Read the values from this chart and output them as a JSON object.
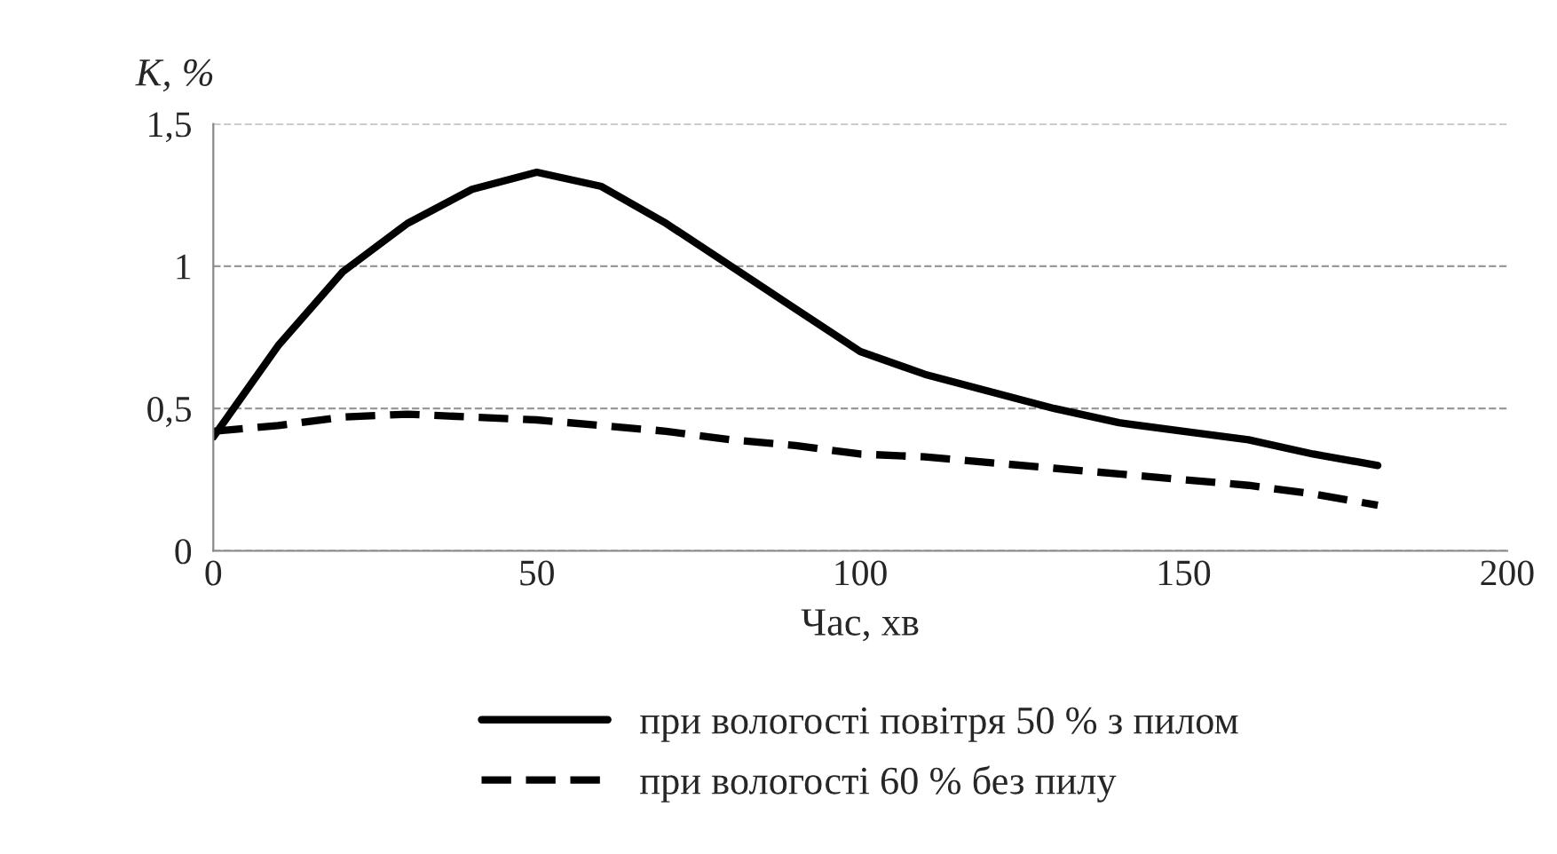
{
  "chart_data": {
    "type": "line",
    "ylabel": "K, %",
    "xlabel": "Час, хв",
    "x": [
      0,
      10,
      20,
      30,
      40,
      50,
      60,
      70,
      80,
      90,
      100,
      110,
      120,
      130,
      140,
      150,
      160,
      170,
      180
    ],
    "series": [
      {
        "name": "при вологості повітря 50 % з пилом",
        "color": "#000000",
        "line_style": "solid",
        "values": [
          0.4,
          0.72,
          0.98,
          1.15,
          1.27,
          1.33,
          1.28,
          1.15,
          1.0,
          0.85,
          0.7,
          0.62,
          0.56,
          0.5,
          0.45,
          0.42,
          0.39,
          0.34,
          0.3
        ]
      },
      {
        "name": "при вологості 60 % без пилу",
        "color": "#000000",
        "line_style": "dashed",
        "values": [
          0.42,
          0.44,
          0.47,
          0.48,
          0.47,
          0.46,
          0.44,
          0.42,
          0.39,
          0.37,
          0.34,
          0.33,
          0.31,
          0.29,
          0.27,
          0.25,
          0.23,
          0.2,
          0.16
        ]
      }
    ],
    "xlim": [
      0,
      200
    ],
    "xticks": [
      0,
      50,
      100,
      150,
      200
    ],
    "ylim": [
      0,
      1.5
    ],
    "yticks": [
      0,
      {
        "value": 0.5,
        "label": "0,5"
      },
      1,
      {
        "value": 1.5,
        "label": "1,5"
      }
    ],
    "grid": "y",
    "legend": "bottom"
  }
}
